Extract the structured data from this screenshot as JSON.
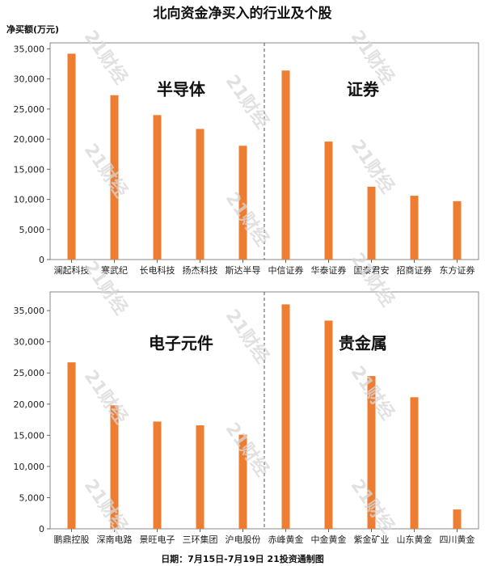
{
  "title": "北向资金净买入的行业及个股",
  "footer": "日期：7月15日-7月19日 21投资通制图",
  "watermark": "21财经",
  "bar_color": "#ED7D31",
  "chart_data": [
    {
      "type": "bar",
      "title": "",
      "ylabel": "净买额(万元)",
      "ylim": [
        0,
        36000
      ],
      "yticks": [
        0,
        5000,
        10000,
        15000,
        20000,
        25000,
        30000,
        35000
      ],
      "groups": [
        "半导体",
        "证券"
      ],
      "categories": [
        "澜起科技",
        "寒武纪",
        "长电科技",
        "扬杰科技",
        "斯达半导",
        "中信证券",
        "华泰证券",
        "国泰君安",
        "招商证券",
        "东方证券"
      ],
      "values": [
        34200,
        27300,
        24000,
        21700,
        18900,
        31400,
        19600,
        12100,
        10600,
        9700
      ]
    },
    {
      "type": "bar",
      "title": "",
      "ylim": [
        0,
        38000
      ],
      "yticks": [
        0,
        5000,
        10000,
        15000,
        20000,
        25000,
        30000,
        35000
      ],
      "groups": [
        "电子元件",
        "贵金属"
      ],
      "categories": [
        "鹏鼎控股",
        "深南电路",
        "景旺电子",
        "三环集团",
        "沪电股份",
        "赤峰黄金",
        "中金黄金",
        "紫金矿业",
        "山东黄金",
        "四川黄金"
      ],
      "values": [
        26700,
        19800,
        17200,
        16600,
        15100,
        36000,
        33400,
        24500,
        21100,
        3100
      ]
    }
  ]
}
